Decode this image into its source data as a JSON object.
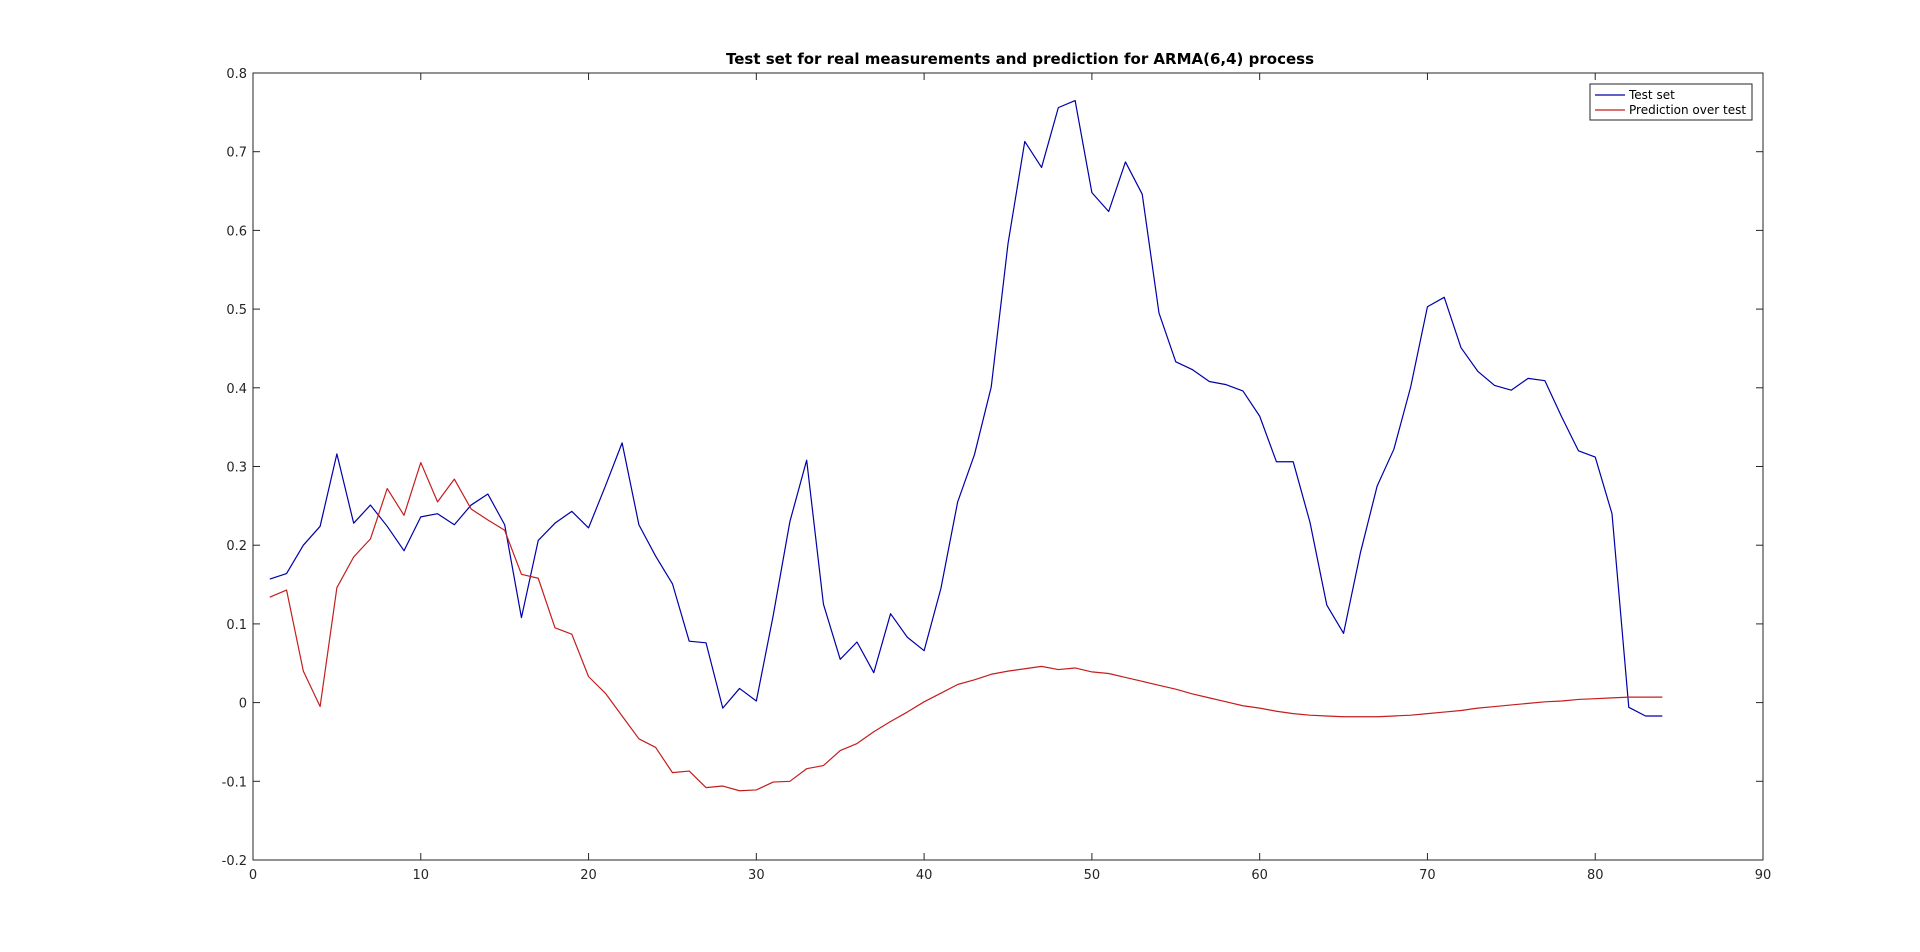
{
  "chart_data": {
    "type": "line",
    "title": "Test set for real measurements and prediction for ARMA(6,4) process",
    "xlabel": "",
    "ylabel": "",
    "xlim": [
      0,
      90
    ],
    "ylim": [
      -0.2,
      0.8
    ],
    "xticks": [
      0,
      10,
      20,
      30,
      40,
      50,
      60,
      70,
      80,
      90
    ],
    "xtick_labels": [
      "0",
      "10",
      "20",
      "30",
      "40",
      "50",
      "60",
      "70",
      "80",
      "90"
    ],
    "yticks": [
      -0.2,
      -0.1,
      0,
      0.1,
      0.2,
      0.3,
      0.4,
      0.5,
      0.6,
      0.7,
      0.8
    ],
    "ytick_labels": [
      "-0.2",
      "-0.1",
      "0",
      "0.1",
      "0.2",
      "0.3",
      "0.4",
      "0.5",
      "0.6",
      "0.7",
      "0.8"
    ],
    "grid": false,
    "legend_position": "top-right",
    "x": [
      1,
      2,
      3,
      4,
      5,
      6,
      7,
      8,
      9,
      10,
      11,
      12,
      13,
      14,
      15,
      16,
      17,
      18,
      19,
      20,
      21,
      22,
      23,
      24,
      25,
      26,
      27,
      28,
      29,
      30,
      31,
      32,
      33,
      34,
      35,
      36,
      37,
      38,
      39,
      40,
      41,
      42,
      43,
      44,
      45,
      46,
      47,
      48,
      49,
      50,
      51,
      52,
      53,
      54,
      55,
      56,
      57,
      58,
      59,
      60,
      61,
      62,
      63,
      64,
      65,
      66,
      67,
      68,
      69,
      70,
      71,
      72,
      73,
      74,
      75,
      76,
      77,
      78,
      79,
      80,
      81,
      82,
      83,
      84
    ],
    "series": [
      {
        "name": "Test set",
        "color": "#0000a8",
        "values": [
          0.157,
          0.164,
          0.2,
          0.224,
          0.316,
          0.228,
          0.251,
          0.224,
          0.193,
          0.236,
          0.24,
          0.226,
          0.251,
          0.265,
          0.226,
          0.108,
          0.206,
          0.228,
          0.243,
          0.222,
          0.275,
          0.33,
          0.226,
          0.186,
          0.151,
          0.078,
          0.076,
          -0.007,
          0.018,
          0.002,
          0.11,
          0.23,
          0.308,
          0.125,
          0.055,
          0.077,
          0.038,
          0.113,
          0.083,
          0.066,
          0.145,
          0.255,
          0.315,
          0.401,
          0.583,
          0.713,
          0.68,
          0.756,
          0.765,
          0.648,
          0.624,
          0.687,
          0.646,
          0.495,
          0.433,
          0.423,
          0.408,
          0.404,
          0.396,
          0.364,
          0.306,
          0.306,
          0.229,
          0.124,
          0.088,
          0.19,
          0.275,
          0.322,
          0.401,
          0.503,
          0.515,
          0.451,
          0.421,
          0.403,
          0.397,
          0.412,
          0.409,
          0.363,
          0.32,
          0.312,
          0.24,
          -0.006,
          -0.017,
          -0.017
        ]
      },
      {
        "name": "Prediction over test",
        "color": "#c41e1e",
        "values": [
          0.134,
          0.143,
          0.04,
          -0.005,
          0.146,
          0.185,
          0.208,
          0.272,
          0.238,
          0.305,
          0.255,
          0.284,
          0.246,
          0.232,
          0.219,
          0.163,
          0.158,
          0.095,
          0.087,
          0.033,
          0.012,
          -0.017,
          -0.046,
          -0.057,
          -0.089,
          -0.087,
          -0.108,
          -0.106,
          -0.112,
          -0.111,
          -0.101,
          -0.1,
          -0.084,
          -0.08,
          -0.061,
          -0.052,
          -0.037,
          -0.024,
          -0.012,
          0.001,
          0.012,
          0.023,
          0.029,
          0.036,
          0.04,
          0.043,
          0.046,
          0.042,
          0.044,
          0.039,
          0.037,
          0.032,
          0.027,
          0.022,
          0.017,
          0.011,
          0.006,
          0.001,
          -0.004,
          -0.007,
          -0.011,
          -0.014,
          -0.016,
          -0.017,
          -0.018,
          -0.018,
          -0.018,
          -0.017,
          -0.016,
          -0.014,
          -0.012,
          -0.01,
          -0.007,
          -0.005,
          -0.003,
          -0.001,
          0.001,
          0.002,
          0.004,
          0.005,
          0.006,
          0.007,
          0.007,
          0.007
        ]
      }
    ]
  }
}
